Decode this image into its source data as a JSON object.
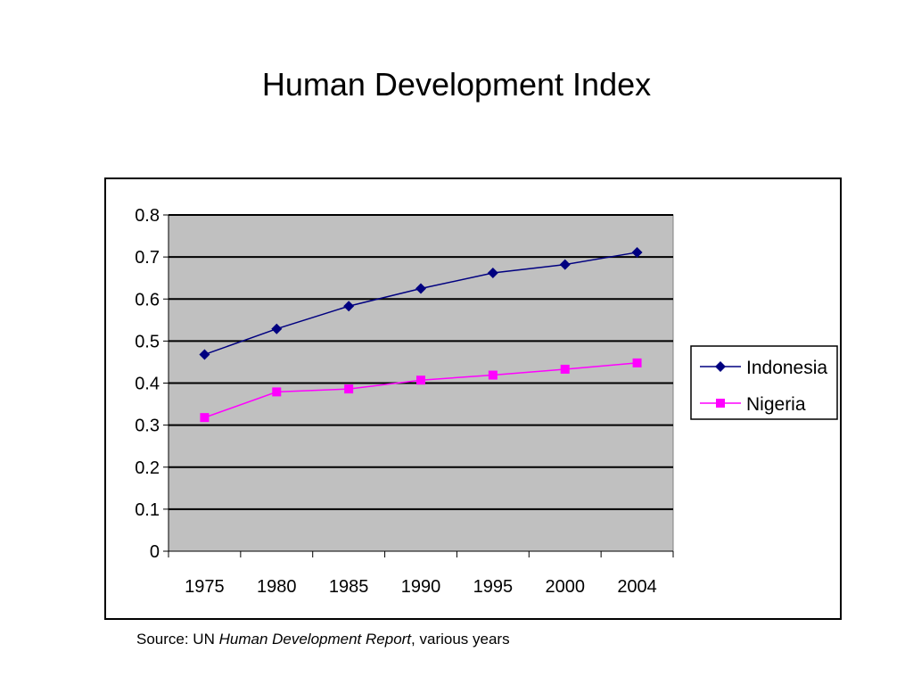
{
  "title": "Human Development Index",
  "source": {
    "prefix": "Source: UN ",
    "italic": "Human Development Report",
    "suffix": ", various years"
  },
  "chart_data": {
    "type": "line",
    "title": "",
    "xlabel": "",
    "ylabel": "",
    "categories": [
      "1975",
      "1980",
      "1985",
      "1990",
      "1995",
      "2000",
      "2004"
    ],
    "ylim": [
      0,
      0.8
    ],
    "yticks": [
      "0",
      "0.1",
      "0.2",
      "0.3",
      "0.4",
      "0.5",
      "0.6",
      "0.7",
      "0.8"
    ],
    "grid": true,
    "plot_background": "#c0c0c0",
    "legend_placement": "right",
    "series": [
      {
        "name": "Indonesia",
        "color": "#000080",
        "marker": "diamond",
        "values": [
          0.468,
          0.529,
          0.583,
          0.625,
          0.662,
          0.682,
          0.711
        ]
      },
      {
        "name": "Nigeria",
        "color": "#ff00ff",
        "marker": "square",
        "values": [
          0.318,
          0.379,
          0.386,
          0.407,
          0.419,
          0.433,
          0.448
        ]
      }
    ]
  }
}
